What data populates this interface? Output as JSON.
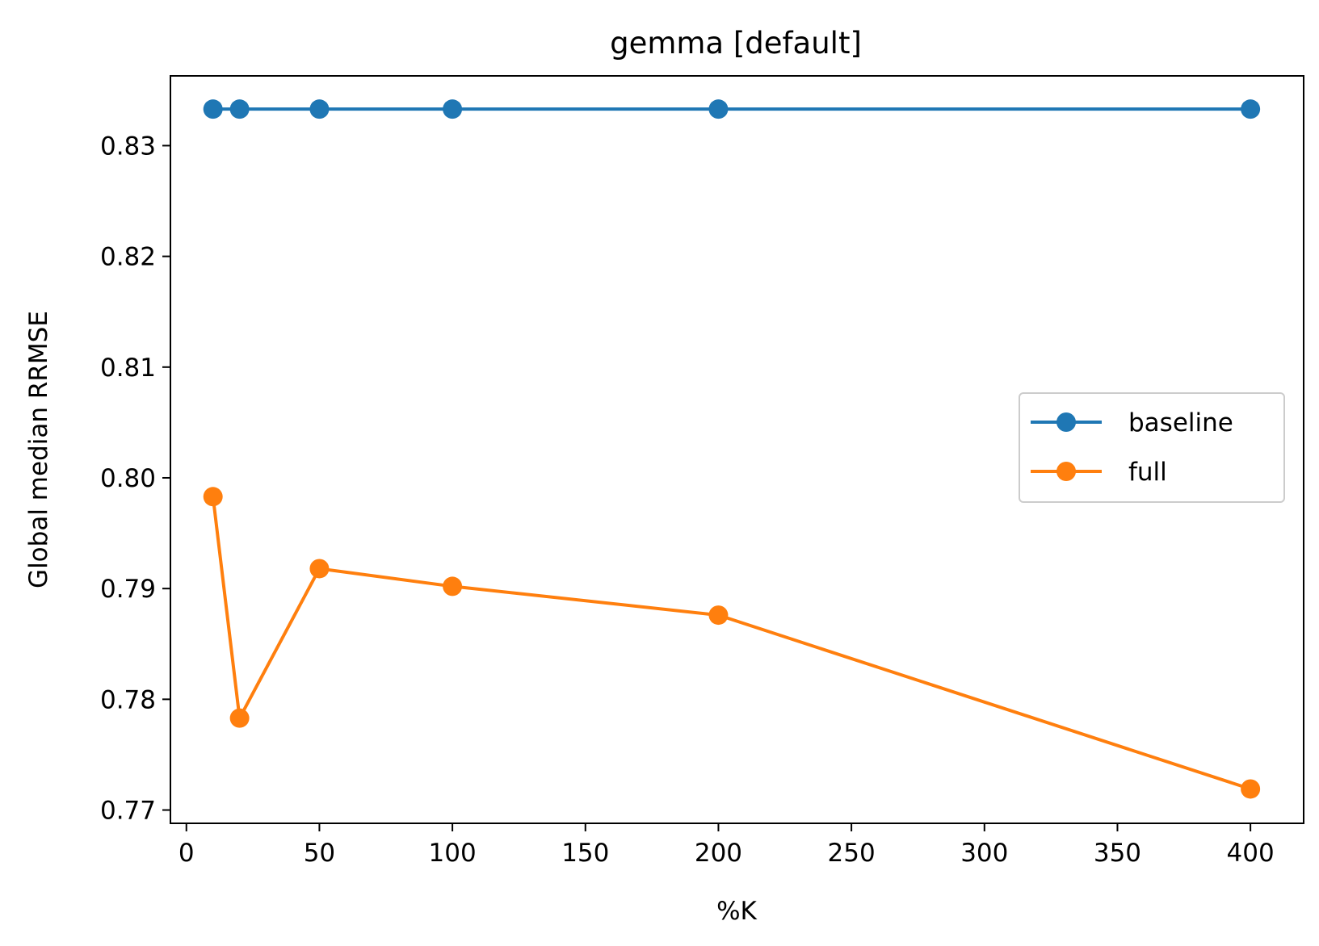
{
  "chart_data": {
    "type": "line",
    "title": "gemma [default]",
    "xlabel": "%K",
    "ylabel": "Global median RRMSE",
    "xlim": [
      -6,
      420
    ],
    "ylim": [
      0.7688,
      0.8363
    ],
    "xticks": [
      0,
      50,
      100,
      150,
      200,
      250,
      300,
      350,
      400
    ],
    "yticks": [
      0.77,
      0.78,
      0.79,
      0.8,
      0.81,
      0.82,
      0.83
    ],
    "xtick_labels": [
      "0",
      "50",
      "100",
      "150",
      "200",
      "250",
      "300",
      "350",
      "400"
    ],
    "ytick_labels": [
      "0.77",
      "0.78",
      "0.79",
      "0.80",
      "0.81",
      "0.82",
      "0.83"
    ],
    "grid": false,
    "legend_position": "center-right",
    "x": [
      10,
      20,
      50,
      100,
      200,
      400
    ],
    "series": [
      {
        "name": "baseline",
        "color": "#1f77b4",
        "values": [
          0.8333,
          0.8333,
          0.8333,
          0.8333,
          0.8333,
          0.8333
        ]
      },
      {
        "name": "full",
        "color": "#ff7f0e",
        "values": [
          0.7983,
          0.7783,
          0.7918,
          0.7902,
          0.7876,
          0.7719
        ]
      }
    ]
  }
}
